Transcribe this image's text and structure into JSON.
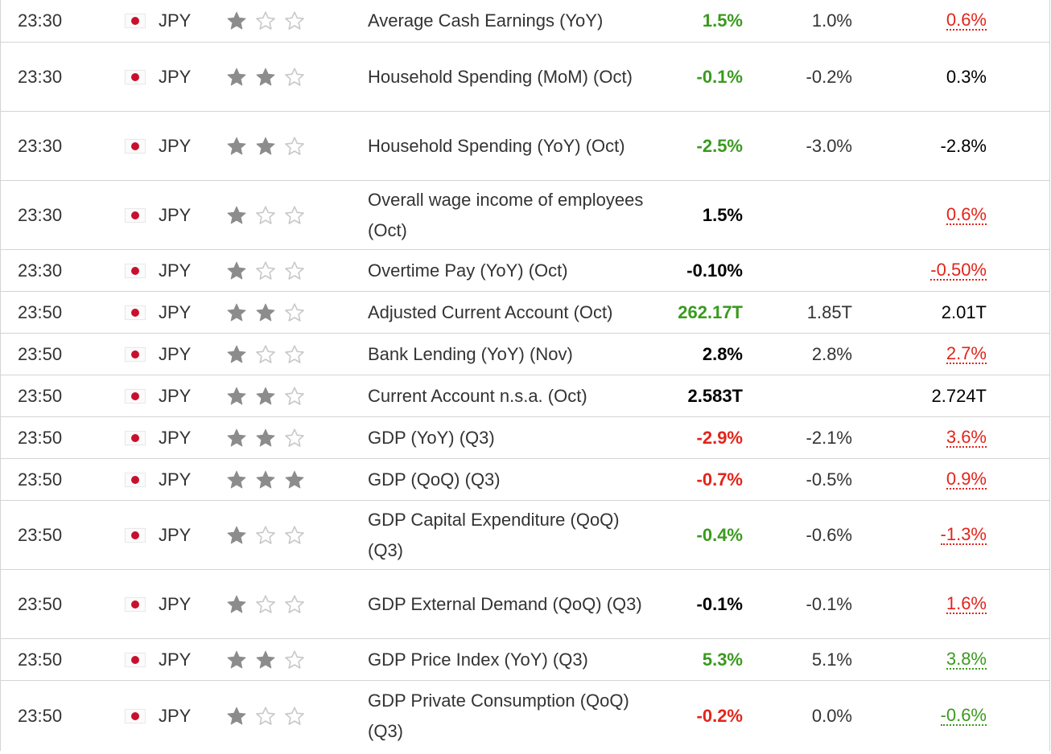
{
  "colors": {
    "better": "#3a9a1e",
    "worse": "#e3241b",
    "neutral": "#000000",
    "star_filled": "#8c8c8c",
    "star_empty": "#c8c8c8",
    "flag_red": "#c8102e"
  },
  "rows": [
    {
      "time": "23:30",
      "flag_icon": "japan-flag-icon",
      "currency": "JPY",
      "importance": 1,
      "event": "Average Cash Earnings (YoY)",
      "actual": "1.5%",
      "actual_color": "green",
      "forecast": "1.0%",
      "previous": "0.6%",
      "previous_style": "revised-red"
    },
    {
      "time": "23:30",
      "flag_icon": "japan-flag-icon",
      "currency": "JPY",
      "importance": 2,
      "event": "Household Spending (MoM) (Oct)",
      "actual": "-0.1%",
      "actual_color": "green",
      "forecast": "-0.2%",
      "previous": "0.3%",
      "previous_style": "plain"
    },
    {
      "time": "23:30",
      "flag_icon": "japan-flag-icon",
      "currency": "JPY",
      "importance": 2,
      "event": "Household Spending (YoY) (Oct)",
      "actual": "-2.5%",
      "actual_color": "green",
      "forecast": "-3.0%",
      "previous": "-2.8%",
      "previous_style": "plain"
    },
    {
      "time": "23:30",
      "flag_icon": "japan-flag-icon",
      "currency": "JPY",
      "importance": 1,
      "event": "Overall wage income of employees (Oct)",
      "actual": "1.5%",
      "actual_color": "black",
      "forecast": "",
      "previous": "0.6%",
      "previous_style": "revised-red"
    },
    {
      "time": "23:30",
      "flag_icon": "japan-flag-icon",
      "currency": "JPY",
      "importance": 1,
      "event": "Overtime Pay (YoY) (Oct)",
      "actual": "-0.10%",
      "actual_color": "black",
      "forecast": "",
      "previous": "-0.50%",
      "previous_style": "revised-red"
    },
    {
      "time": "23:50",
      "flag_icon": "japan-flag-icon",
      "currency": "JPY",
      "importance": 2,
      "event": "Adjusted Current Account (Oct)",
      "actual": "262.17T",
      "actual_color": "green",
      "forecast": "1.85T",
      "previous": "2.01T",
      "previous_style": "plain"
    },
    {
      "time": "23:50",
      "flag_icon": "japan-flag-icon",
      "currency": "JPY",
      "importance": 1,
      "event": "Bank Lending (YoY) (Nov)",
      "actual": "2.8%",
      "actual_color": "black",
      "forecast": "2.8%",
      "previous": "2.7%",
      "previous_style": "revised-red"
    },
    {
      "time": "23:50",
      "flag_icon": "japan-flag-icon",
      "currency": "JPY",
      "importance": 2,
      "event": "Current Account n.s.a. (Oct)",
      "actual": "2.583T",
      "actual_color": "black",
      "forecast": "",
      "previous": "2.724T",
      "previous_style": "plain"
    },
    {
      "time": "23:50",
      "flag_icon": "japan-flag-icon",
      "currency": "JPY",
      "importance": 2,
      "event": "GDP (YoY) (Q3)",
      "actual": "-2.9%",
      "actual_color": "red",
      "forecast": "-2.1%",
      "previous": "3.6%",
      "previous_style": "revised-red"
    },
    {
      "time": "23:50",
      "flag_icon": "japan-flag-icon",
      "currency": "JPY",
      "importance": 3,
      "event": "GDP (QoQ) (Q3)",
      "actual": "-0.7%",
      "actual_color": "red",
      "forecast": "-0.5%",
      "previous": "0.9%",
      "previous_style": "revised-red"
    },
    {
      "time": "23:50",
      "flag_icon": "japan-flag-icon",
      "currency": "JPY",
      "importance": 1,
      "event": "GDP Capital Expenditure (QoQ) (Q3)",
      "actual": "-0.4%",
      "actual_color": "green",
      "forecast": "-0.6%",
      "previous": "-1.3%",
      "previous_style": "revised-red"
    },
    {
      "time": "23:50",
      "flag_icon": "japan-flag-icon",
      "currency": "JPY",
      "importance": 1,
      "event": "GDP External Demand (QoQ) (Q3)",
      "actual": "-0.1%",
      "actual_color": "black",
      "forecast": "-0.1%",
      "previous": "1.6%",
      "previous_style": "revised-red"
    },
    {
      "time": "23:50",
      "flag_icon": "japan-flag-icon",
      "currency": "JPY",
      "importance": 2,
      "event": "GDP Price Index (YoY) (Q3)",
      "actual": "5.3%",
      "actual_color": "green",
      "forecast": "5.1%",
      "previous": "3.8%",
      "previous_style": "revised-green"
    },
    {
      "time": "23:50",
      "flag_icon": "japan-flag-icon",
      "currency": "JPY",
      "importance": 1,
      "event": "GDP Private Consumption (QoQ) (Q3)",
      "actual": "-0.2%",
      "actual_color": "red",
      "forecast": "0.0%",
      "previous": "-0.6%",
      "previous_style": "revised-green"
    }
  ]
}
